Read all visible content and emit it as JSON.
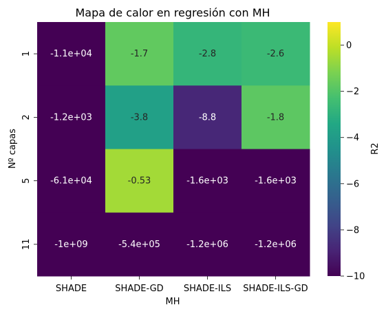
{
  "chart_data": {
    "type": "heatmap",
    "title": "Mapa de calor en regresión con MH",
    "xlabel": "MH",
    "ylabel": "Nº capas",
    "x_categories": [
      "SHADE",
      "SHADE-GD",
      "SHADE-ILS",
      "SHADE-ILS-GD"
    ],
    "y_categories": [
      "1",
      "2",
      "5",
      "11"
    ],
    "values": [
      [
        -11000,
        -1.7,
        -2.8,
        -2.6
      ],
      [
        -1200,
        -3.8,
        -8.8,
        -1.8
      ],
      [
        -61000,
        -0.53,
        -1600,
        -1600
      ],
      [
        -1000000000,
        -540000,
        -1200000,
        -1200000
      ]
    ],
    "annotations": [
      [
        "-1.1e+04",
        "-1.7",
        "-2.8",
        "-2.6"
      ],
      [
        "-1.2e+03",
        "-3.8",
        "-8.8",
        "-1.8"
      ],
      [
        "-6.1e+04",
        "-0.53",
        "-1.6e+03",
        "-1.6e+03"
      ],
      [
        "-1e+09",
        "-5.4e+05",
        "-1.2e+06",
        "-1.2e+06"
      ]
    ],
    "colormap": "viridis",
    "vmin": -10,
    "vmax": 1,
    "colorbar": {
      "label": "R2",
      "ticks": [
        0,
        -2,
        -4,
        -6,
        -8,
        -10
      ],
      "tick_labels": [
        "0",
        "−2",
        "−4",
        "−6",
        "−8",
        "−10"
      ]
    },
    "grid": false
  }
}
